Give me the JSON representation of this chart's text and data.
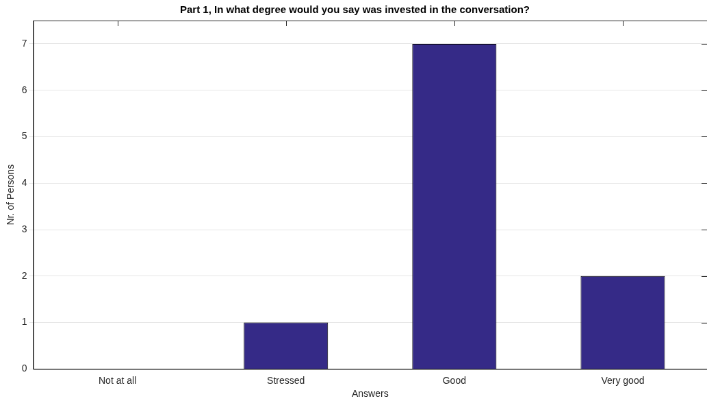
{
  "chart_data": {
    "type": "bar",
    "title": "Part 1, In what degree would you say was invested in the conversation?",
    "xlabel": "Answers",
    "ylabel": "Nr. of Persons",
    "categories": [
      "Not at all",
      "Stressed",
      "Good",
      "Very good"
    ],
    "values": [
      0,
      1,
      7,
      2
    ],
    "color": "#352a87",
    "ylim": [
      0,
      7.5
    ],
    "yticks": [
      0,
      1,
      2,
      3,
      4,
      5,
      6,
      7
    ],
    "grid": "y",
    "legend": false
  }
}
